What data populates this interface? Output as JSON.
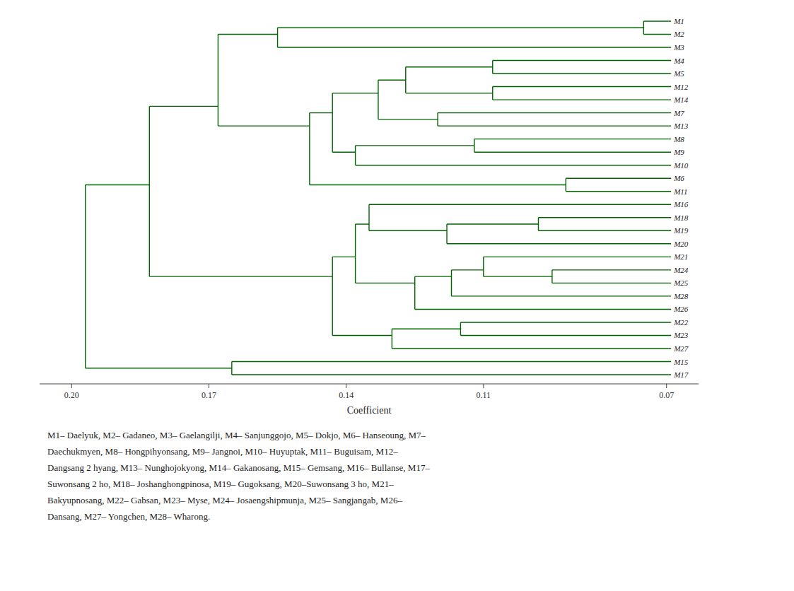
{
  "chart_data": {
    "type": "dendrogram",
    "categories": [
      "M1",
      "M2",
      "M3",
      "M4",
      "M5",
      "M12",
      "M14",
      "M7",
      "M13",
      "M8",
      "M9",
      "M10",
      "M6",
      "M11",
      "M16",
      "M18",
      "M19",
      "M20",
      "M21",
      "M24",
      "M25",
      "M28",
      "M26",
      "M22",
      "M23",
      "M27",
      "M15",
      "M17"
    ],
    "leaf_height": 0.069,
    "tree": {
      "height": 0.197,
      "children": [
        {
          "height": 0.183,
          "children": [
            {
              "height": 0.168,
              "children": [
                {
                  "height": 0.155,
                  "children": [
                    {
                      "height": 0.075,
                      "children": [
                        "M1",
                        "M2"
                      ]
                    },
                    "M3"
                  ]
                },
                {
                  "height": 0.148,
                  "children": [
                    {
                      "height": 0.143,
                      "children": [
                        {
                          "height": 0.133,
                          "children": [
                            {
                              "height": 0.127,
                              "children": [
                                {
                                  "height": 0.108,
                                  "children": [
                                    "M4",
                                    "M5"
                                  ]
                                },
                                {
                                  "height": 0.108,
                                  "children": [
                                    "M12",
                                    "M14"
                                  ]
                                }
                              ]
                            },
                            {
                              "height": 0.12,
                              "children": [
                                "M7",
                                "M13"
                              ]
                            }
                          ]
                        },
                        {
                          "height": 0.138,
                          "children": [
                            {
                              "height": 0.112,
                              "children": [
                                "M8",
                                "M9"
                              ]
                            },
                            "M10"
                          ]
                        }
                      ]
                    },
                    {
                      "height": 0.092,
                      "children": [
                        "M6",
                        "M11"
                      ]
                    }
                  ]
                }
              ]
            },
            {
              "height": 0.143,
              "children": [
                {
                  "height": 0.138,
                  "children": [
                    {
                      "height": 0.135,
                      "children": [
                        "M16",
                        {
                          "height": 0.118,
                          "children": [
                            {
                              "height": 0.098,
                              "children": [
                                "M18",
                                "M19"
                              ]
                            },
                            "M20"
                          ]
                        }
                      ]
                    },
                    {
                      "height": 0.125,
                      "children": [
                        {
                          "height": 0.117,
                          "children": [
                            {
                              "height": 0.11,
                              "children": [
                                "M21",
                                {
                                  "height": 0.095,
                                  "children": [
                                    "M24",
                                    "M25"
                                  ]
                                }
                              ]
                            },
                            "M28"
                          ]
                        },
                        "M26"
                      ]
                    }
                  ]
                },
                {
                  "height": 0.13,
                  "children": [
                    {
                      "height": 0.115,
                      "children": [
                        "M22",
                        "M23"
                      ]
                    },
                    "M27"
                  ]
                }
              ]
            }
          ]
        },
        {
          "height": 0.165,
          "children": [
            "M15",
            "M17"
          ]
        }
      ]
    },
    "color": "#006400",
    "xlabel": "Coefficient",
    "xlim": [
      0.207,
      0.063
    ],
    "xticks": [
      {
        "value": 0.2,
        "label": "0.20"
      },
      0.17,
      0.14,
      0.11,
      0.07
    ],
    "caption_lines": [
      "M1– Daelyuk, M2– Gadaneo, M3– Gaelangilji, M4– Sanjunggojo, M5– Dokjo, M6– Hanseoung, M7–",
      "Daechukmyen, M8– Hongpihyonsang, M9– Jangnoi, M10– Huyuptak, M11– Buguisam, M12–",
      "Dangsang 2 hyang, M13– Nunghojokyong, M14– Gakanosang, M15– Gemsang, M16– Bullanse, M17–",
      "Suwonsang 2 ho, M18– Joshanghongpinosa, M19– Gugoksang, M20–Suwonsang 3 ho, M21–",
      "Bakyupnosang, M22– Gabsan, M23– Myse, M24– Josaengshipmunja, M25– Sangjangab, M26–",
      "Dansang, M27– Yongchen, M28– Wharong."
    ]
  }
}
